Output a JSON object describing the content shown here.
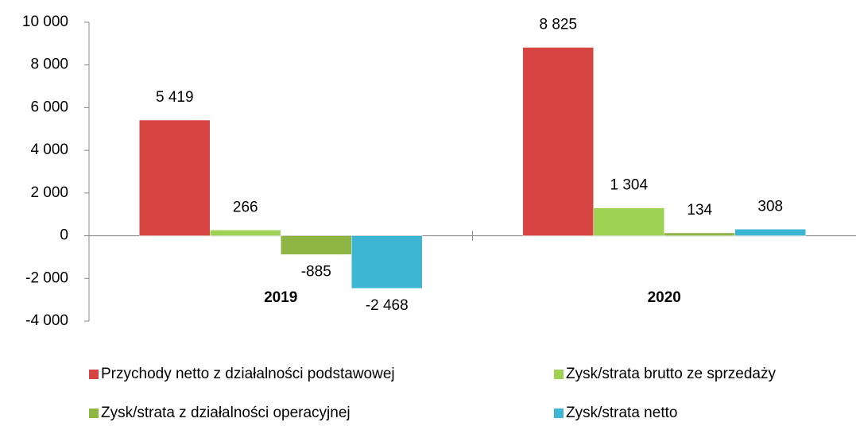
{
  "chart_data": {
    "type": "bar",
    "categories": [
      "2019",
      "2020"
    ],
    "series": [
      {
        "name": "Przychody netto z działalności podstawowej",
        "color": "#d64541",
        "values": [
          5419,
          8825
        ],
        "value_labels": [
          "5 419",
          "8 825"
        ]
      },
      {
        "name": "Zysk/strata brutto ze sprzedaży",
        "color": "#9fd152",
        "values": [
          266,
          1304
        ],
        "value_labels": [
          "266",
          "1 304"
        ]
      },
      {
        "name": "Zysk/strata z działalności operacyjnej",
        "color": "#8fb544",
        "values": [
          -885,
          134
        ],
        "value_labels": [
          "-885",
          "134"
        ]
      },
      {
        "name": "Zysk/strata netto",
        "color": "#3cb6d3",
        "values": [
          -2468,
          308
        ],
        "value_labels": [
          "-2 468",
          "308"
        ]
      }
    ],
    "ylim": [
      -4000,
      10000
    ],
    "yticks": [
      {
        "value": -4000,
        "label": "-4 000"
      },
      {
        "value": -2000,
        "label": "-2 000"
      },
      0,
      {
        "value": 2000,
        "label": "2 000"
      },
      {
        "value": 4000,
        "label": "4 000"
      },
      {
        "value": 6000,
        "label": "6 000"
      },
      {
        "value": 8000,
        "label": "8 000"
      },
      {
        "value": 10000,
        "label": "10 000"
      }
    ],
    "grid": false
  }
}
